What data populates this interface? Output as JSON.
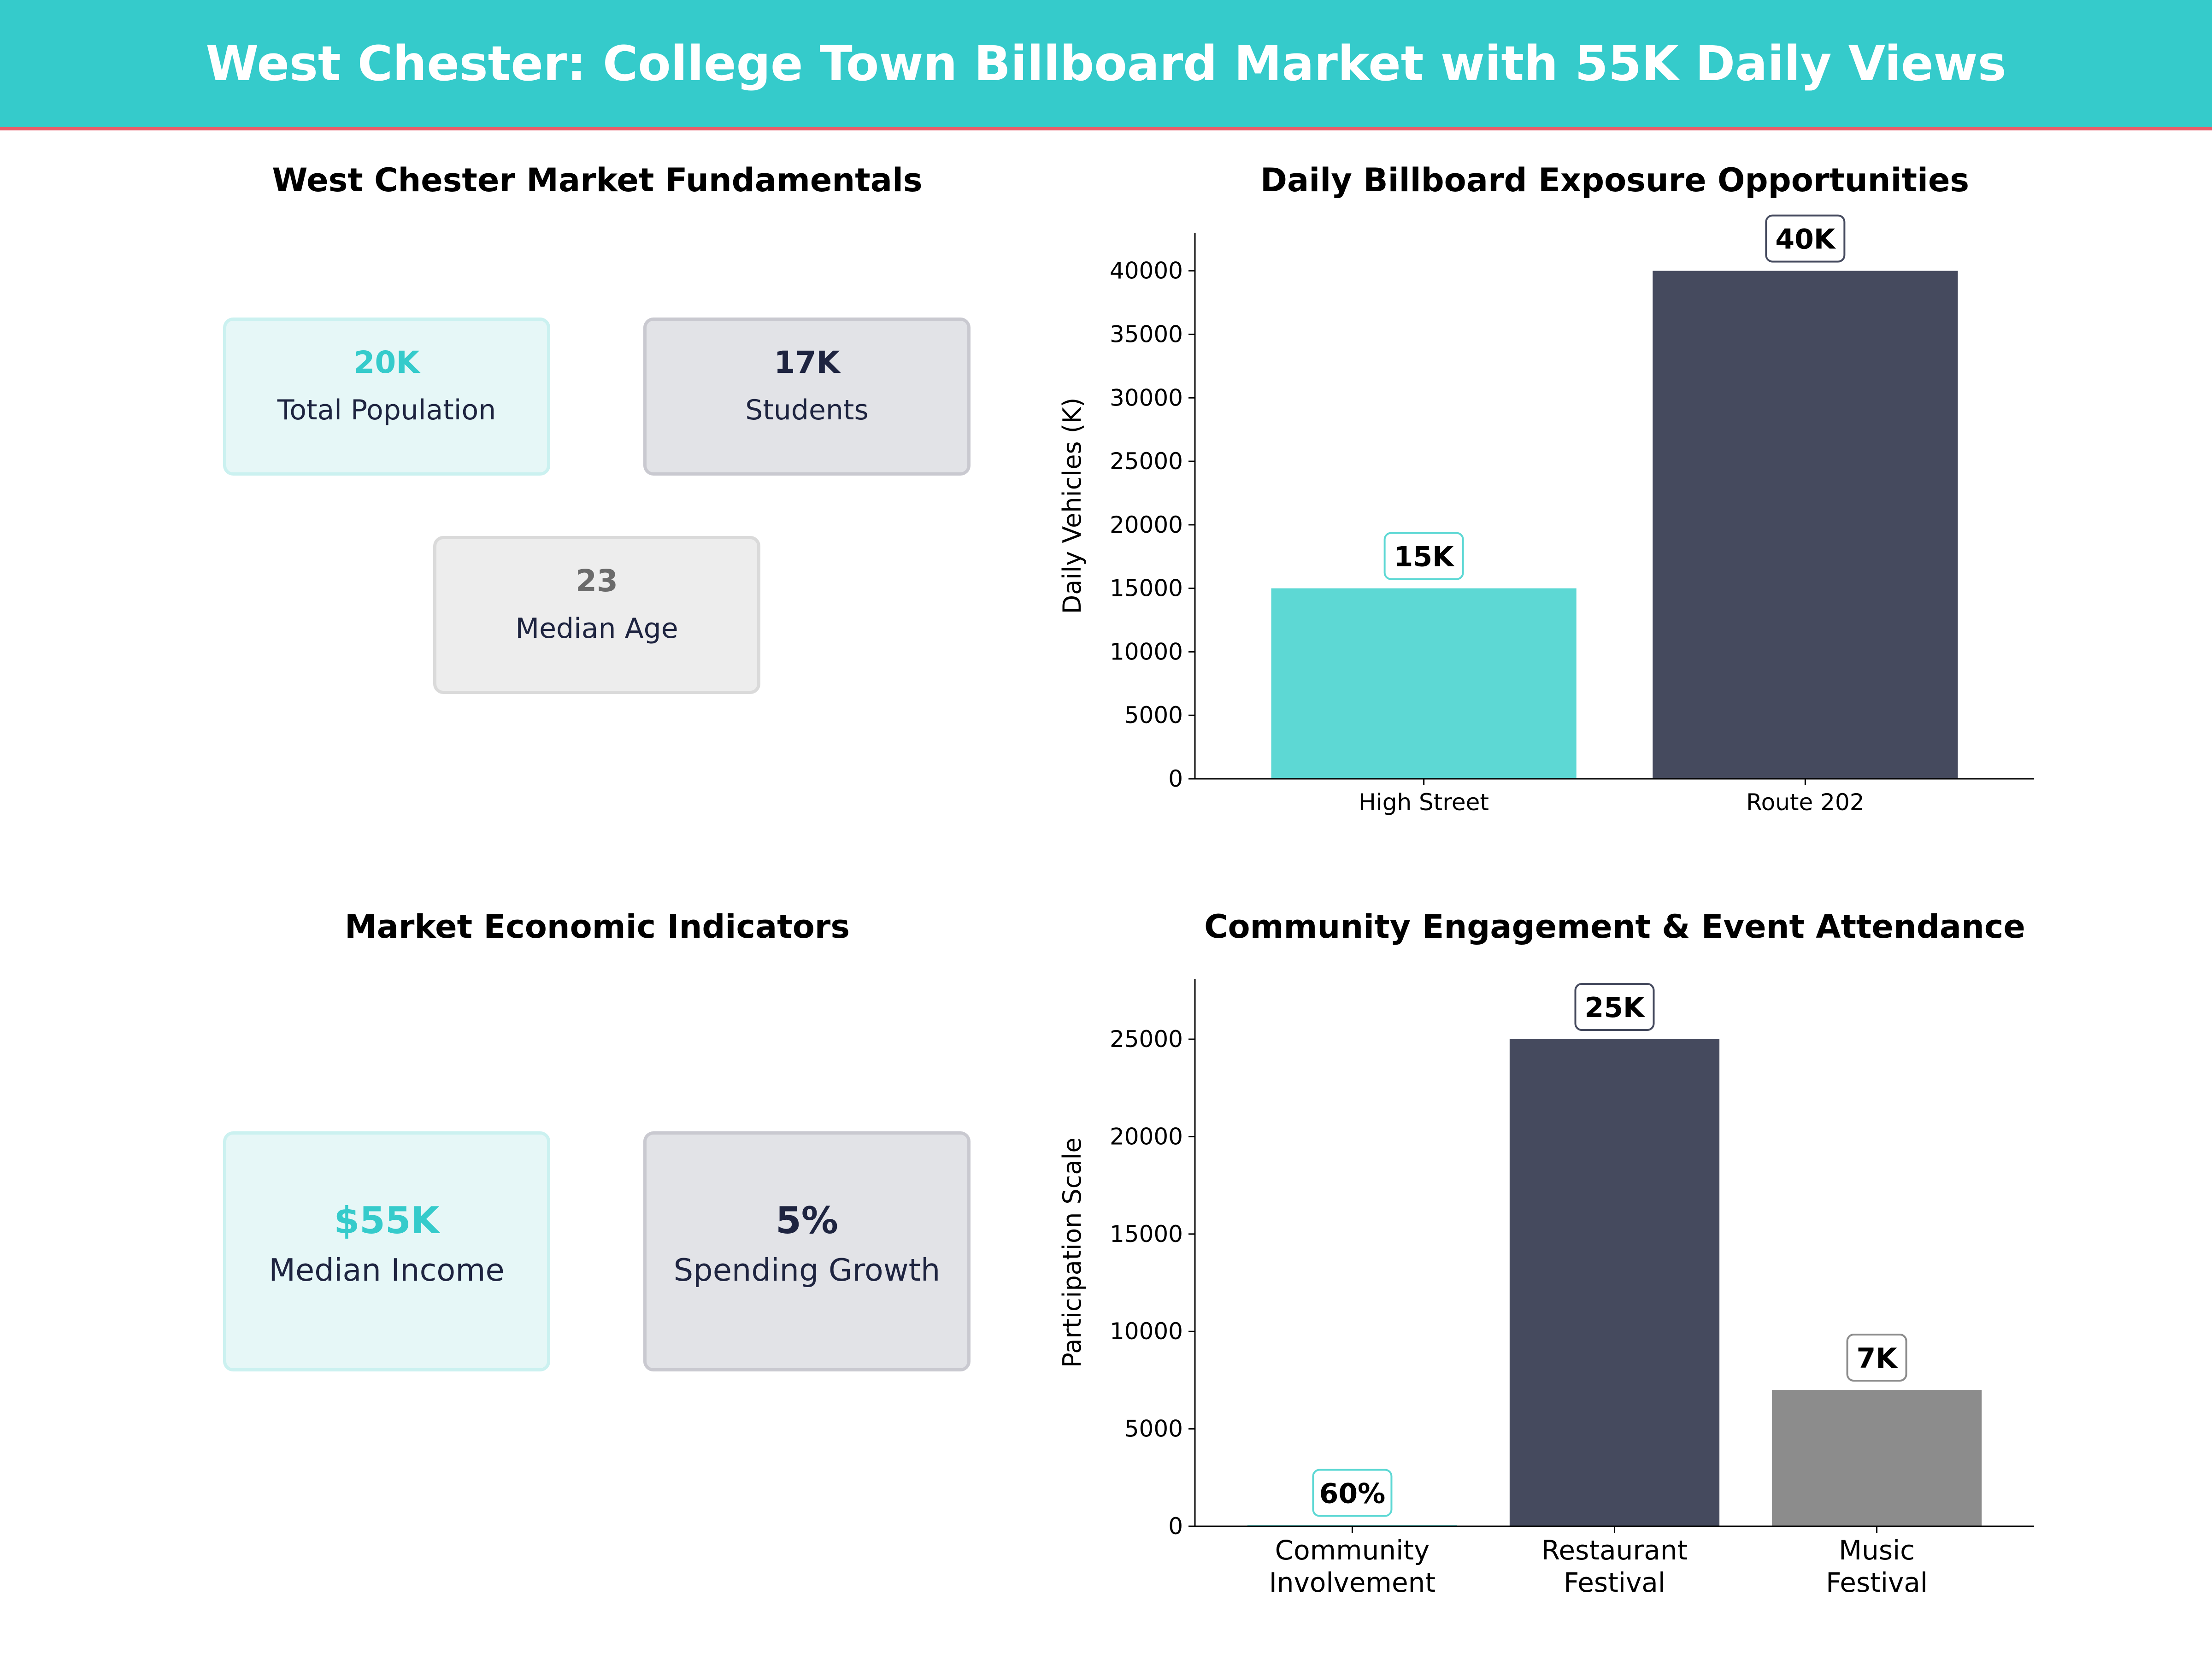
{
  "header": {
    "title": "West Chester: College Town Billboard Market with 55K Daily Views"
  },
  "fundamentals": {
    "title": "West Chester Market Fundamentals",
    "cards": [
      {
        "value": "20K",
        "label": "Total Population",
        "color": "#35CBCB"
      },
      {
        "value": "17K",
        "label": "Students",
        "color": "#1E2440"
      },
      {
        "value": "23",
        "label": "Median Age",
        "color": "#6B6B6B"
      }
    ]
  },
  "economic": {
    "title": "Market Economic Indicators",
    "cards": [
      {
        "value": "$55K",
        "label": "Median Income",
        "color": "#35CBCB"
      },
      {
        "value": "5%",
        "label": "Spending Growth",
        "color": "#1E2440"
      }
    ]
  },
  "chart_data": [
    {
      "type": "bar",
      "title": "Daily Billboard Exposure Opportunities",
      "xlabel": "",
      "ylabel": "Daily Vehicles (K)",
      "categories": [
        "High Street",
        "Route 202"
      ],
      "values": [
        15000,
        40000
      ],
      "data_labels": [
        "15K",
        "40K"
      ],
      "colors": [
        "#5DD8D4",
        "#454A5E"
      ],
      "label_border_colors": [
        "#5DD8D4",
        "#454A5E"
      ],
      "yticks": [
        0,
        5000,
        10000,
        15000,
        20000,
        25000,
        30000,
        35000,
        40000
      ],
      "ylim": [
        0,
        43000
      ],
      "grid": false
    },
    {
      "type": "bar",
      "title": "Community Engagement & Event Attendance",
      "xlabel": "",
      "ylabel": "Participation Scale",
      "categories": [
        [
          "Community",
          "Involvement"
        ],
        [
          "Restaurant",
          "Festival"
        ],
        [
          "Music",
          "Festival"
        ]
      ],
      "values": [
        60,
        25000,
        7000
      ],
      "data_labels": [
        "60%",
        "25K",
        "7K"
      ],
      "colors": [
        "#5DD8D4",
        "#454A5E",
        "#8C8C8C"
      ],
      "label_border_colors": [
        "#5DD8D4",
        "#454A5E",
        "#8C8C8C"
      ],
      "yticks": [
        0,
        5000,
        10000,
        15000,
        20000,
        25000
      ],
      "ylim": [
        0,
        28100
      ],
      "grid": false
    }
  ]
}
